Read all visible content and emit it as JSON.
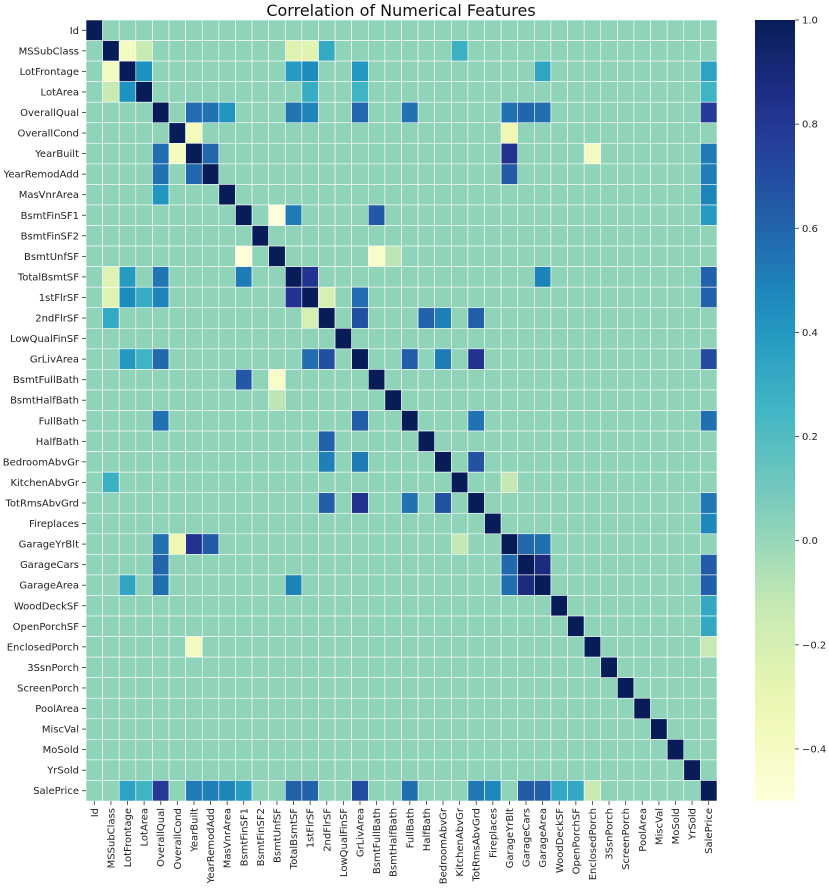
{
  "chart_data": {
    "type": "heatmap",
    "title": "Correlation of Numerical Features",
    "labels": [
      "Id",
      "MSSubClass",
      "LotFrontage",
      "LotArea",
      "OverallQual",
      "OverallCond",
      "YearBuilt",
      "YearRemodAdd",
      "MasVnrArea",
      "BsmtFinSF1",
      "BsmtFinSF2",
      "BsmtUnfSF",
      "TotalBsmtSF",
      "1stFlrSF",
      "2ndFlrSF",
      "LowQualFinSF",
      "GrLivArea",
      "BsmtFullBath",
      "BsmtHalfBath",
      "FullBath",
      "HalfBath",
      "BedroomAbvGr",
      "KitchenAbvGr",
      "TotRmsAbvGrd",
      "Fireplaces",
      "GarageYrBlt",
      "GarageCars",
      "GarageArea",
      "WoodDeckSF",
      "OpenPorchSF",
      "EnclosedPorch",
      "3SsnPorch",
      "ScreenPorch",
      "PoolArea",
      "MiscVal",
      "MoSold",
      "YrSold",
      "SalePrice"
    ],
    "colormap": "YlGnBu",
    "vmin": -0.5,
    "vmax": 1.0,
    "colorbar_ticks": [
      -0.4,
      -0.2,
      0.0,
      0.2,
      0.4,
      0.6,
      0.8,
      1.0
    ],
    "colorbar_tick_labels": [
      "−0.4",
      "−0.2",
      "0.0",
      "0.2",
      "0.4",
      "0.6",
      "0.8",
      "1.0"
    ],
    "correlations": [
      {
        "pair": [
          "MSSubClass",
          "LotFrontage"
        ],
        "value": -0.39
      },
      {
        "pair": [
          "MSSubClass",
          "LotArea"
        ],
        "value": -0.14
      },
      {
        "pair": [
          "MSSubClass",
          "2ndFlrSF"
        ],
        "value": 0.31
      },
      {
        "pair": [
          "MSSubClass",
          "KitchenAbvGr"
        ],
        "value": 0.28
      },
      {
        "pair": [
          "MSSubClass",
          "TotalBsmtSF"
        ],
        "value": -0.24
      },
      {
        "pair": [
          "MSSubClass",
          "1stFlrSF"
        ],
        "value": -0.25
      },
      {
        "pair": [
          "LotFrontage",
          "LotArea"
        ],
        "value": 0.43
      },
      {
        "pair": [
          "LotFrontage",
          "TotalBsmtSF"
        ],
        "value": 0.39
      },
      {
        "pair": [
          "LotFrontage",
          "1stFlrSF"
        ],
        "value": 0.46
      },
      {
        "pair": [
          "LotFrontage",
          "GrLivArea"
        ],
        "value": 0.4
      },
      {
        "pair": [
          "LotFrontage",
          "GarageArea"
        ],
        "value": 0.34
      },
      {
        "pair": [
          "LotFrontage",
          "SalePrice"
        ],
        "value": 0.35
      },
      {
        "pair": [
          "LotArea",
          "1stFlrSF"
        ],
        "value": 0.3
      },
      {
        "pair": [
          "LotArea",
          "GrLivArea"
        ],
        "value": 0.26
      },
      {
        "pair": [
          "LotArea",
          "SalePrice"
        ],
        "value": 0.26
      },
      {
        "pair": [
          "OverallQual",
          "YearBuilt"
        ],
        "value": 0.57
      },
      {
        "pair": [
          "OverallQual",
          "YearRemodAdd"
        ],
        "value": 0.55
      },
      {
        "pair": [
          "OverallQual",
          "MasVnrArea"
        ],
        "value": 0.41
      },
      {
        "pair": [
          "OverallQual",
          "TotalBsmtSF"
        ],
        "value": 0.54
      },
      {
        "pair": [
          "OverallQual",
          "1stFlrSF"
        ],
        "value": 0.48
      },
      {
        "pair": [
          "OverallQual",
          "GrLivArea"
        ],
        "value": 0.59
      },
      {
        "pair": [
          "OverallQual",
          "FullBath"
        ],
        "value": 0.55
      },
      {
        "pair": [
          "OverallQual",
          "GarageYrBlt"
        ],
        "value": 0.55
      },
      {
        "pair": [
          "OverallQual",
          "GarageCars"
        ],
        "value": 0.6
      },
      {
        "pair": [
          "OverallQual",
          "GarageArea"
        ],
        "value": 0.56
      },
      {
        "pair": [
          "OverallQual",
          "SalePrice"
        ],
        "value": 0.79
      },
      {
        "pair": [
          "OverallCond",
          "YearBuilt"
        ],
        "value": -0.38
      },
      {
        "pair": [
          "OverallCond",
          "GarageYrBlt"
        ],
        "value": -0.32
      },
      {
        "pair": [
          "YearBuilt",
          "YearRemodAdd"
        ],
        "value": 0.59
      },
      {
        "pair": [
          "YearBuilt",
          "GarageYrBlt"
        ],
        "value": 0.83
      },
      {
        "pair": [
          "YearBuilt",
          "EnclosedPorch"
        ],
        "value": -0.39
      },
      {
        "pair": [
          "YearBuilt",
          "SalePrice"
        ],
        "value": 0.52
      },
      {
        "pair": [
          "YearRemodAdd",
          "GarageYrBlt"
        ],
        "value": 0.64
      },
      {
        "pair": [
          "YearRemodAdd",
          "SalePrice"
        ],
        "value": 0.51
      },
      {
        "pair": [
          "MasVnrArea",
          "SalePrice"
        ],
        "value": 0.48
      },
      {
        "pair": [
          "BsmtFinSF1",
          "BsmtUnfSF"
        ],
        "value": -0.5
      },
      {
        "pair": [
          "BsmtFinSF1",
          "TotalBsmtSF"
        ],
        "value": 0.52
      },
      {
        "pair": [
          "BsmtFinSF1",
          "BsmtFullBath"
        ],
        "value": 0.65
      },
      {
        "pair": [
          "BsmtFinSF1",
          "SalePrice"
        ],
        "value": 0.39
      },
      {
        "pair": [
          "BsmtUnfSF",
          "BsmtFullBath"
        ],
        "value": -0.42
      },
      {
        "pair": [
          "BsmtUnfSF",
          "BsmtHalfBath"
        ],
        "value": -0.1
      },
      {
        "pair": [
          "TotalBsmtSF",
          "1stFlrSF"
        ],
        "value": 0.82
      },
      {
        "pair": [
          "TotalBsmtSF",
          "GarageArea"
        ],
        "value": 0.49
      },
      {
        "pair": [
          "TotalBsmtSF",
          "SalePrice"
        ],
        "value": 0.61
      },
      {
        "pair": [
          "1stFlrSF",
          "2ndFlrSF"
        ],
        "value": -0.2
      },
      {
        "pair": [
          "1stFlrSF",
          "GrLivArea"
        ],
        "value": 0.57
      },
      {
        "pair": [
          "1stFlrSF",
          "SalePrice"
        ],
        "value": 0.61
      },
      {
        "pair": [
          "2ndFlrSF",
          "GrLivArea"
        ],
        "value": 0.69
      },
      {
        "pair": [
          "2ndFlrSF",
          "HalfBath"
        ],
        "value": 0.61
      },
      {
        "pair": [
          "2ndFlrSF",
          "BedroomAbvGr"
        ],
        "value": 0.5
      },
      {
        "pair": [
          "2ndFlrSF",
          "TotRmsAbvGrd"
        ],
        "value": 0.62
      },
      {
        "pair": [
          "GrLivArea",
          "FullBath"
        ],
        "value": 0.63
      },
      {
        "pair": [
          "GrLivArea",
          "BedroomAbvGr"
        ],
        "value": 0.52
      },
      {
        "pair": [
          "GrLivArea",
          "TotRmsAbvGrd"
        ],
        "value": 0.83
      },
      {
        "pair": [
          "GrLivArea",
          "SalePrice"
        ],
        "value": 0.71
      },
      {
        "pair": [
          "FullBath",
          "TotRmsAbvGrd"
        ],
        "value": 0.55
      },
      {
        "pair": [
          "FullBath",
          "SalePrice"
        ],
        "value": 0.56
      },
      {
        "pair": [
          "BedroomAbvGr",
          "TotRmsAbvGrd"
        ],
        "value": 0.68
      },
      {
        "pair": [
          "KitchenAbvGr",
          "GarageYrBlt"
        ],
        "value": -0.12
      },
      {
        "pair": [
          "TotRmsAbvGrd",
          "SalePrice"
        ],
        "value": 0.53
      },
      {
        "pair": [
          "Fireplaces",
          "SalePrice"
        ],
        "value": 0.47
      },
      {
        "pair": [
          "GarageYrBlt",
          "GarageCars"
        ],
        "value": 0.59
      },
      {
        "pair": [
          "GarageYrBlt",
          "GarageArea"
        ],
        "value": 0.56
      },
      {
        "pair": [
          "GarageCars",
          "GarageArea"
        ],
        "value": 0.88
      },
      {
        "pair": [
          "GarageCars",
          "SalePrice"
        ],
        "value": 0.64
      },
      {
        "pair": [
          "GarageArea",
          "SalePrice"
        ],
        "value": 0.62
      },
      {
        "pair": [
          "WoodDeckSF",
          "SalePrice"
        ],
        "value": 0.32
      },
      {
        "pair": [
          "OpenPorchSF",
          "SalePrice"
        ],
        "value": 0.32
      },
      {
        "pair": [
          "EnclosedPorch",
          "SalePrice"
        ],
        "value": -0.13
      }
    ]
  }
}
